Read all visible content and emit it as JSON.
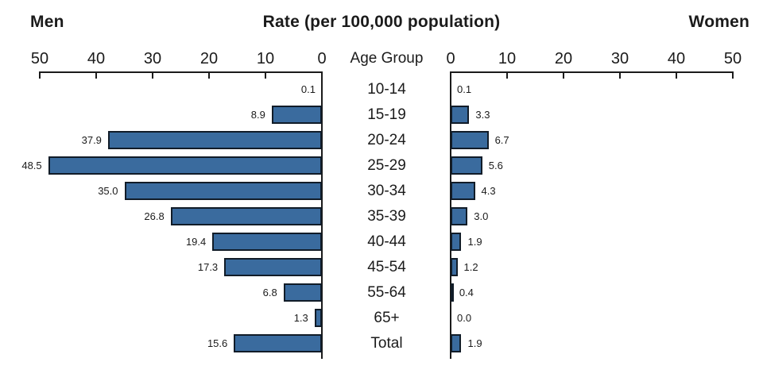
{
  "header": {
    "left": "Men",
    "title": "Rate (per 100,000 population)",
    "right": "Women"
  },
  "colors": {
    "bar_fill": "#3A6B9E",
    "bar_border": "#111C28",
    "axis": "#1B1B1B",
    "text": "#1B1B1B",
    "background": "#FFFFFF"
  },
  "chart_data": {
    "type": "bar",
    "subtype": "bilateral-horizontal-pyramid",
    "title": "Rate (per 100,000 population)",
    "categories": [
      "10-14",
      "15-19",
      "20-24",
      "25-29",
      "30-34",
      "35-39",
      "40-44",
      "45-54",
      "55-64",
      "65+",
      "Total"
    ],
    "series": [
      {
        "name": "Men",
        "side": "left",
        "values": [
          0.1,
          8.9,
          37.9,
          48.5,
          35.0,
          26.8,
          19.4,
          17.3,
          6.8,
          1.3,
          15.6
        ]
      },
      {
        "name": "Women",
        "side": "right",
        "values": [
          0.1,
          3.3,
          6.7,
          5.6,
          4.3,
          3.0,
          1.9,
          1.2,
          0.4,
          0.0,
          1.9
        ]
      }
    ],
    "axis": {
      "label": "Age Group",
      "min": 0,
      "max": 50,
      "left_ticks": [
        50,
        40,
        30,
        20,
        10,
        0
      ],
      "right_ticks": [
        0,
        10,
        20,
        30,
        40,
        50
      ]
    },
    "value_labels": "one-decimal, placed outside bar ends",
    "grid": false,
    "legend": "none (side titles Men / Women act as legend)"
  }
}
